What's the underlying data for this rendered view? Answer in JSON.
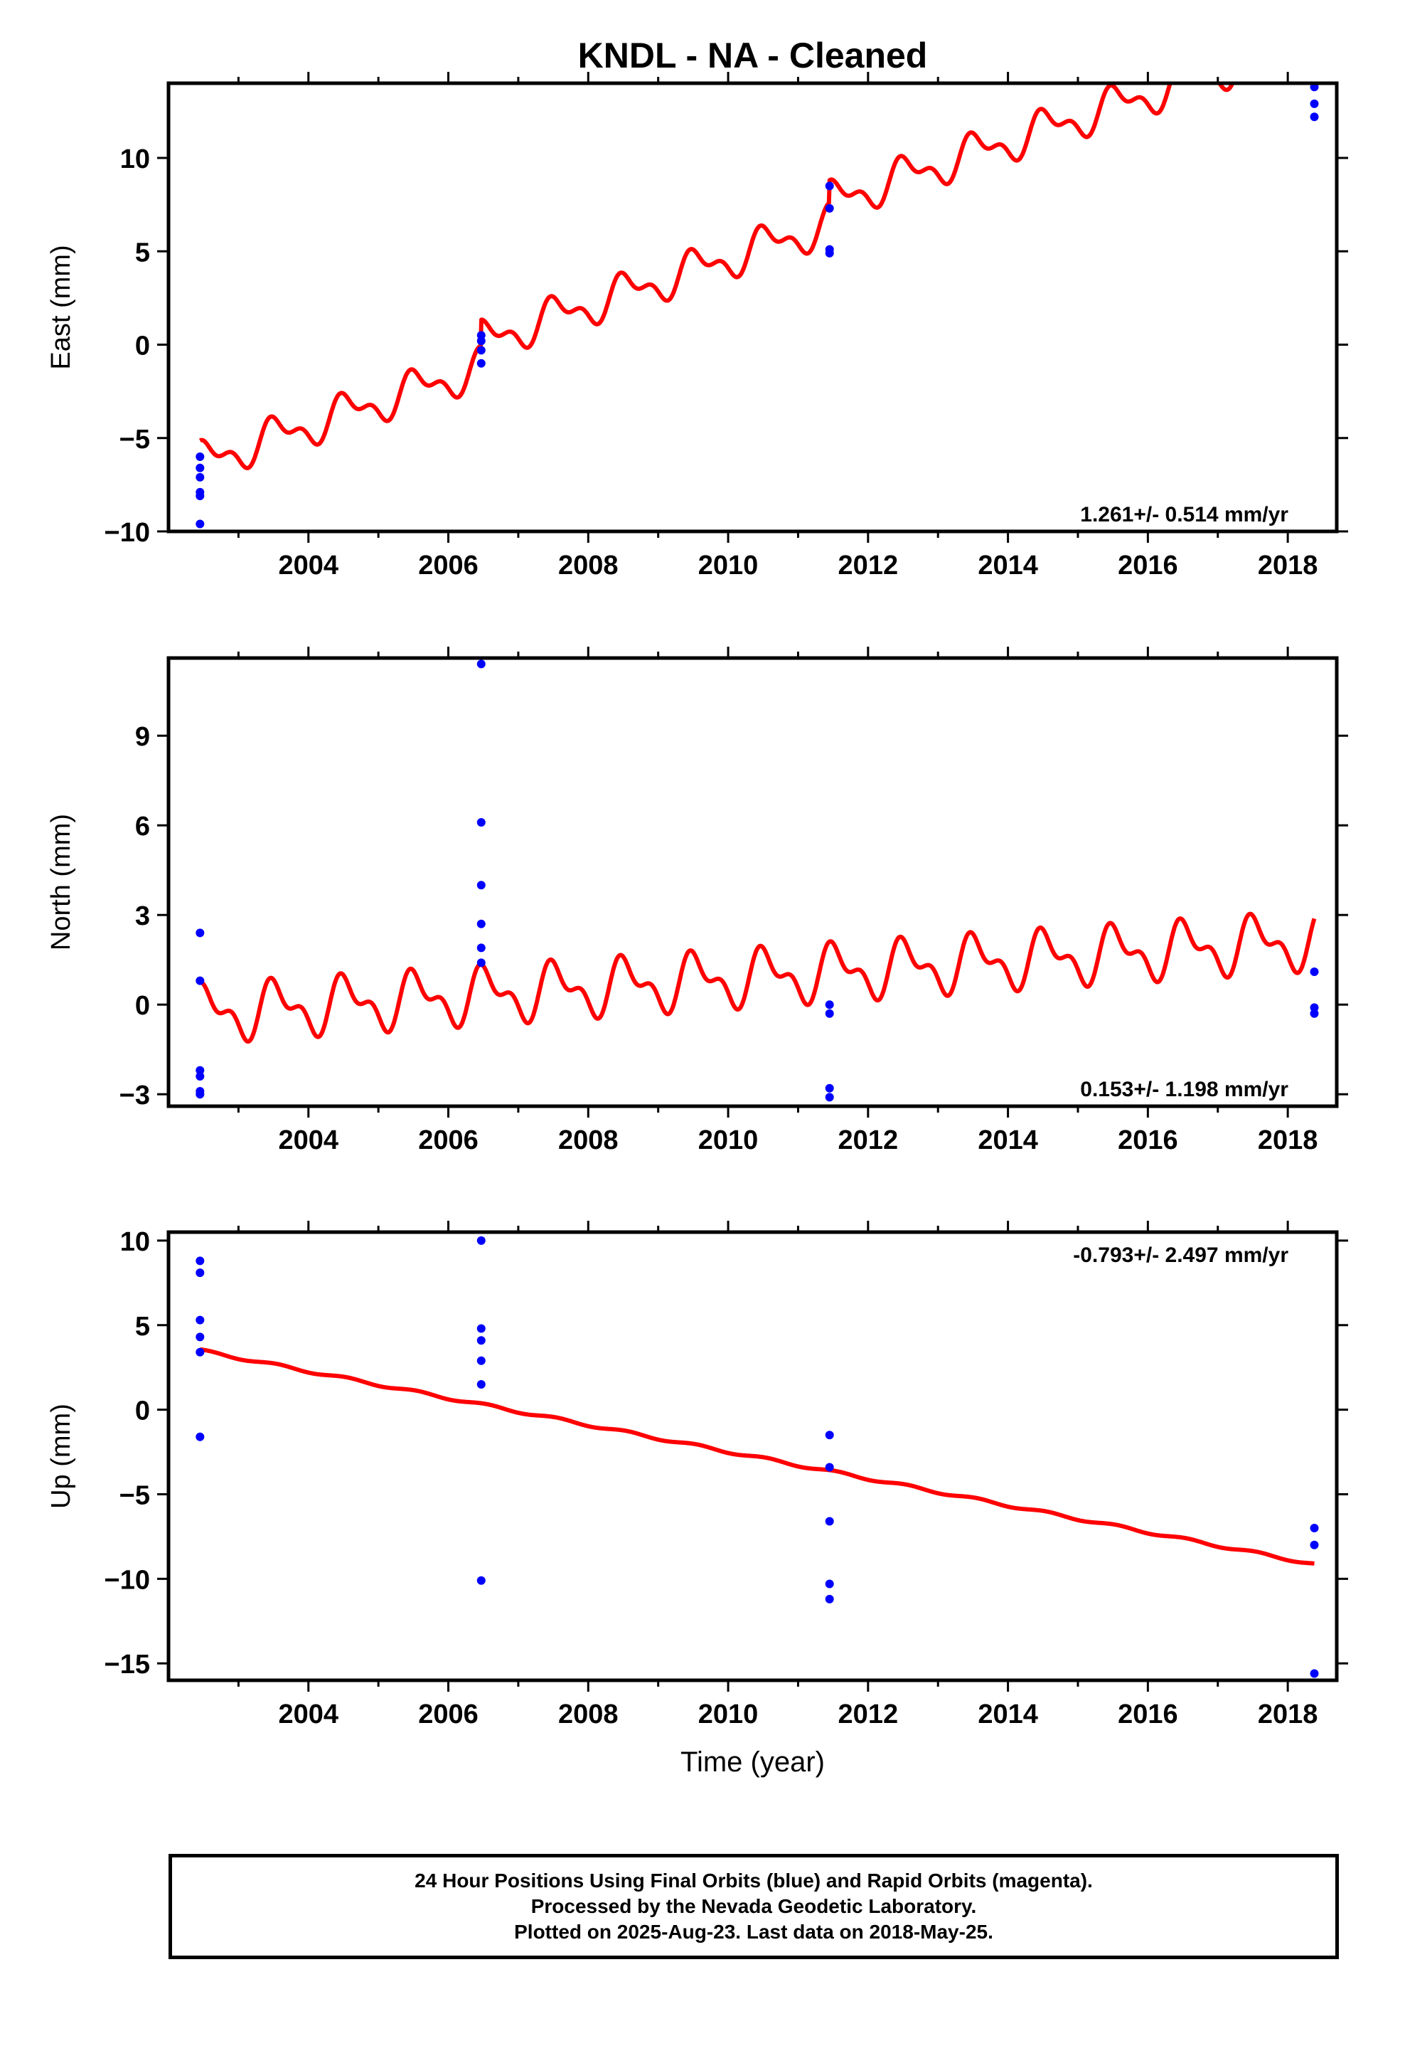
{
  "chart_data": {
    "title": "KNDL  - NA - Cleaned",
    "xlabel": "Time (year)",
    "x_ticks": [
      "2004",
      "2006",
      "2008",
      "2010",
      "2012",
      "2014",
      "2016",
      "2018"
    ],
    "xlim": [
      2002.0,
      2018.7
    ],
    "colors": {
      "data": "#0000ff",
      "model": "#ff0000",
      "axes": "#000000"
    },
    "panels": [
      {
        "type": "scatter",
        "component": "East",
        "ylabel": "East (mm)",
        "ylim": [
          -10,
          14
        ],
        "y_ticks": [
          "10",
          "5",
          "0",
          "−5",
          "−10"
        ],
        "y_tick_values": [
          10,
          5,
          0,
          -5,
          -10
        ],
        "rate": "1.261+/- 0.514 mm/yr",
        "rate_position": "bottom-right",
        "points": [
          [
            2002.45,
            -6.0
          ],
          [
            2002.45,
            -6.6
          ],
          [
            2002.45,
            -7.1
          ],
          [
            2002.45,
            -7.9
          ],
          [
            2002.45,
            -8.1
          ],
          [
            2002.45,
            -9.6
          ],
          [
            2006.47,
            0.5
          ],
          [
            2006.47,
            0.2
          ],
          [
            2006.47,
            -0.3
          ],
          [
            2006.47,
            -1.0
          ],
          [
            2011.45,
            8.5
          ],
          [
            2011.45,
            7.3
          ],
          [
            2011.45,
            5.1
          ],
          [
            2011.45,
            4.9
          ],
          [
            2018.38,
            13.8
          ],
          [
            2018.38,
            12.9
          ],
          [
            2018.38,
            12.2
          ]
        ],
        "model": {
          "slope": 1.261,
          "y_at_2002_45": -6.3,
          "annual_amp": 0.85,
          "semiannual_amp": 0.5,
          "offsets": [
            [
              2006.47,
              1.4
            ],
            [
              2011.45,
              1.2
            ]
          ]
        }
      },
      {
        "type": "scatter",
        "component": "North",
        "ylabel": "North (mm)",
        "ylim": [
          -3.4,
          11.6
        ],
        "y_ticks": [
          "9",
          "6",
          "3",
          "0",
          "−3"
        ],
        "y_tick_values": [
          9,
          6,
          3,
          0,
          -3
        ],
        "rate": "0.153+/- 1.198 mm/yr",
        "rate_position": "bottom-right",
        "points": [
          [
            2002.45,
            2.4
          ],
          [
            2002.45,
            0.8
          ],
          [
            2002.45,
            -2.2
          ],
          [
            2002.45,
            -2.4
          ],
          [
            2002.45,
            -2.9
          ],
          [
            2002.45,
            -3.0
          ],
          [
            2006.47,
            11.4
          ],
          [
            2006.47,
            6.1
          ],
          [
            2006.47,
            4.0
          ],
          [
            2006.47,
            2.7
          ],
          [
            2006.47,
            1.9
          ],
          [
            2006.47,
            1.4
          ],
          [
            2011.45,
            0.0
          ],
          [
            2011.45,
            -0.3
          ],
          [
            2011.45,
            -2.8
          ],
          [
            2011.45,
            -3.1
          ],
          [
            2018.38,
            1.1
          ],
          [
            2018.38,
            -0.1
          ],
          [
            2018.38,
            -0.3
          ]
        ],
        "model": {
          "slope": 0.153,
          "y_at_2002_45": -0.3,
          "annual_amp": 0.75,
          "semiannual_amp": 0.45,
          "offsets": []
        }
      },
      {
        "type": "scatter",
        "component": "Up",
        "ylabel": "Up (mm)",
        "ylim": [
          -16,
          10.5
        ],
        "y_ticks": [
          "10",
          "5",
          "0",
          "−5",
          "−10",
          "−15"
        ],
        "y_tick_values": [
          10,
          5,
          0,
          -5,
          -10,
          -15
        ],
        "rate": "-0.793+/- 2.497 mm/yr",
        "rate_position": "top-right",
        "points": [
          [
            2002.45,
            8.8
          ],
          [
            2002.45,
            8.1
          ],
          [
            2002.45,
            5.3
          ],
          [
            2002.45,
            4.3
          ],
          [
            2002.45,
            3.4
          ],
          [
            2002.45,
            -1.6
          ],
          [
            2006.47,
            10.0
          ],
          [
            2006.47,
            4.8
          ],
          [
            2006.47,
            4.1
          ],
          [
            2006.47,
            2.9
          ],
          [
            2006.47,
            1.5
          ],
          [
            2006.47,
            -10.1
          ],
          [
            2011.45,
            -1.5
          ],
          [
            2011.45,
            -3.4
          ],
          [
            2011.45,
            -6.6
          ],
          [
            2011.45,
            -10.3
          ],
          [
            2011.45,
            -11.2
          ],
          [
            2018.38,
            -7.0
          ],
          [
            2018.38,
            -8.0
          ],
          [
            2018.38,
            -15.6
          ]
        ],
        "model": {
          "slope": -0.793,
          "y_at_2002_45": 3.5,
          "annual_amp": 0.08,
          "semiannual_amp": 0.0,
          "offsets": []
        }
      }
    ]
  },
  "footer": {
    "line1": "24 Hour Positions Using Final Orbits (blue) and Rapid Orbits (magenta).",
    "line2": "Processed by the Nevada Geodetic Laboratory.",
    "line3": "Plotted on 2025-Aug-23. Last data on 2018-May-25."
  }
}
